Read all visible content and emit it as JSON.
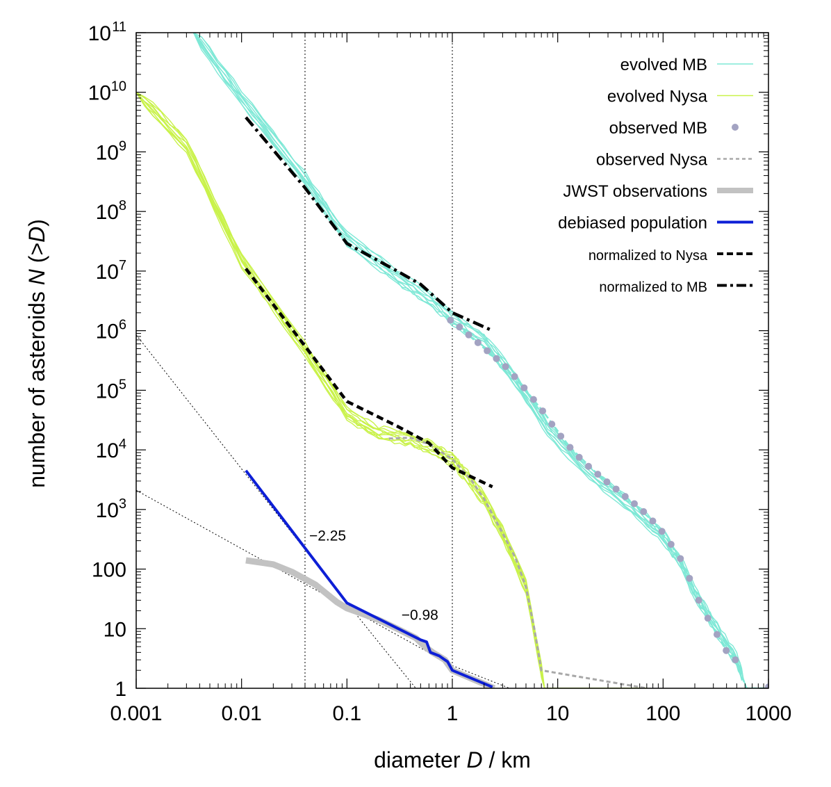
{
  "chart_data": {
    "type": "line",
    "xscale": "log",
    "yscale": "log",
    "xlabel": {
      "prefix": "diameter ",
      "italic": "D",
      "suffix": " / km"
    },
    "ylabel": {
      "prefix": "number of asteroids ",
      "italic": "N",
      "suffix": " (>",
      "italic2": "D",
      "end": ")"
    },
    "xlim": [
      0.001,
      1000
    ],
    "ylim": [
      1,
      100000000000.0
    ],
    "xticks": [
      {
        "value": 0.001,
        "label": "0.001"
      },
      {
        "value": 0.01,
        "label": "0.01"
      },
      {
        "value": 0.1,
        "label": "0.1"
      },
      {
        "value": 1,
        "label": "1"
      },
      {
        "value": 10,
        "label": "10"
      },
      {
        "value": 100,
        "label": "100"
      },
      {
        "value": 1000,
        "label": "1000"
      }
    ],
    "yticks": [
      {
        "value": 1,
        "label": "1"
      },
      {
        "value": 10,
        "label": "10"
      },
      {
        "value": 100,
        "label": "100"
      },
      {
        "value": 1000,
        "label": "10",
        "exp": "3"
      },
      {
        "value": 10000,
        "label": "10",
        "exp": "4"
      },
      {
        "value": 100000,
        "label": "10",
        "exp": "5"
      },
      {
        "value": 1000000,
        "label": "10",
        "exp": "6"
      },
      {
        "value": 10000000,
        "label": "10",
        "exp": "7"
      },
      {
        "value": 100000000,
        "label": "10",
        "exp": "8"
      },
      {
        "value": 1000000000,
        "label": "10",
        "exp": "9"
      },
      {
        "value": 10000000000,
        "label": "10",
        "exp": "10"
      },
      {
        "value": 100000000000,
        "label": "10",
        "exp": "11"
      }
    ],
    "vlines": [
      0.04,
      1
    ],
    "colors": {
      "evolved_mb": "#7ee8d6",
      "evolved_nysa": "#c9f24a",
      "observed_mb": "#a3a3c2",
      "observed_nysa": "#a8a8a8",
      "jwst": "#c2c2c2",
      "debiased": "#0d1fd6",
      "black": "#000000"
    },
    "legend": [
      {
        "label": "evolved MB",
        "style": "thin",
        "color": "#7ee8d6"
      },
      {
        "label": "evolved Nysa",
        "style": "thin",
        "color": "#c9f24a"
      },
      {
        "label": "observed MB",
        "style": "dot",
        "color": "#a3a3c2"
      },
      {
        "label": "observed Nysa",
        "style": "dashgray",
        "color": "#a8a8a8"
      },
      {
        "label": "JWST observations",
        "style": "thick",
        "color": "#c2c2c2"
      },
      {
        "label": "debiased population",
        "style": "blue",
        "color": "#0d1fd6"
      },
      {
        "label": "normalized to Nysa",
        "style": "dash",
        "color": "#000000",
        "small": true
      },
      {
        "label": "normalized to MB",
        "style": "dashdot",
        "color": "#000000",
        "small": true
      }
    ],
    "annotations": [
      {
        "text": "−2.25",
        "x": 0.04,
        "y": 300
      },
      {
        "text": "−0.98",
        "x": 0.3,
        "y": 14
      }
    ],
    "series": [
      {
        "name": "evolved MB",
        "kind": "ensemble",
        "count": 9,
        "spread": 0.12,
        "points": [
          [
            0.0035,
            100000000000.0
          ],
          [
            0.01,
            8000000000.0
          ],
          [
            0.04,
            350000000.0
          ],
          [
            0.1,
            35000000.0
          ],
          [
            0.3,
            8000000.0
          ],
          [
            0.6,
            3500000.0
          ],
          [
            1,
            1600000.0
          ],
          [
            2,
            700000.0
          ],
          [
            4,
            150000.0
          ],
          [
            8,
            23000.0
          ],
          [
            20,
            4000.0
          ],
          [
            50,
            1100.0
          ],
          [
            100,
            350
          ],
          [
            150,
            120
          ],
          [
            200,
            40
          ],
          [
            300,
            12
          ],
          [
            500,
            3
          ],
          [
            620,
            1
          ],
          [
            1000,
            1
          ]
        ]
      },
      {
        "name": "evolved Nysa",
        "kind": "ensemble",
        "count": 9,
        "spread": 0.12,
        "points": [
          [
            0.001,
            10000000000.0
          ],
          [
            0.003,
            1300000000.0
          ],
          [
            0.01,
            15000000.0
          ],
          [
            0.04,
            500000.0
          ],
          [
            0.1,
            40000.0
          ],
          [
            0.2,
            19000.0
          ],
          [
            0.4,
            15000.0
          ],
          [
            0.7,
            10000.0
          ],
          [
            1,
            7000.0
          ],
          [
            1.3,
            4000.0
          ],
          [
            2,
            1500.0
          ],
          [
            3,
            400.0
          ],
          [
            5,
            50
          ],
          [
            7.5,
            1
          ],
          [
            70,
            1
          ]
        ]
      },
      {
        "name": "observed MB",
        "kind": "dots",
        "points": [
          [
            0.96,
            1500000.0
          ],
          [
            1.17,
            1150000.0
          ],
          [
            1.43,
            850000.0
          ],
          [
            1.75,
            630000.0
          ],
          [
            2.14,
            460000.0
          ],
          [
            2.62,
            340000.0
          ],
          [
            3.2,
            250000.0
          ],
          [
            3.9,
            170000.0
          ],
          [
            4.8,
            110000.0
          ],
          [
            5.9,
            70000.0
          ],
          [
            7.2,
            45000.0
          ],
          [
            8.8,
            27000.0
          ],
          [
            10.7,
            17000.0
          ],
          [
            13.1,
            11000.0
          ],
          [
            16,
            7500.0
          ],
          [
            19.6,
            5300.0
          ],
          [
            24,
            3900.0
          ],
          [
            29.3,
            2900.0
          ],
          [
            35.8,
            2200.0
          ],
          [
            43.7,
            1650.0
          ],
          [
            53.4,
            1250.0
          ],
          [
            65.3,
            920
          ],
          [
            79.8,
            640
          ],
          [
            97.5,
            430
          ],
          [
            119,
            260
          ],
          [
            146,
            150
          ],
          [
            178,
            70
          ],
          [
            218,
            30
          ],
          [
            266,
            15
          ],
          [
            325,
            8
          ],
          [
            397,
            4.3
          ],
          [
            485,
            3
          ],
          [
            1000,
            1.05
          ]
        ]
      },
      {
        "name": "observed MB fit",
        "kind": "dashedcyan",
        "points": [
          [
            0.96,
            1500000.0
          ],
          [
            2.14,
            460000.0
          ],
          [
            3.9,
            170000.0
          ],
          [
            7.2,
            45000.0
          ],
          [
            13.1,
            11000.0
          ],
          [
            24,
            3900.0
          ],
          [
            43.7,
            1650.0
          ],
          [
            79.8,
            640
          ],
          [
            119,
            260
          ],
          [
            178,
            70
          ],
          [
            266,
            15
          ],
          [
            397,
            4.3
          ],
          [
            485,
            3
          ],
          [
            620,
            1
          ],
          [
            1000,
            1
          ]
        ]
      },
      {
        "name": "observed Nysa",
        "kind": "dashgray",
        "points": [
          [
            0.25,
            15500.0
          ],
          [
            0.4,
            16000.0
          ],
          [
            0.6,
            12500.0
          ],
          [
            1,
            7000.0
          ],
          [
            1.5,
            3200.0
          ],
          [
            2,
            1500.0
          ],
          [
            3,
            400.0
          ],
          [
            4,
            150.0
          ],
          [
            5,
            50
          ],
          [
            6,
            10
          ],
          [
            7,
            2
          ],
          [
            70,
            1
          ]
        ]
      },
      {
        "name": "JWST observations",
        "kind": "thick",
        "points": [
          [
            0.011,
            140
          ],
          [
            0.02,
            120
          ],
          [
            0.03,
            90
          ],
          [
            0.05,
            55
          ],
          [
            0.08,
            28
          ],
          [
            0.1,
            22
          ],
          [
            0.15,
            17
          ],
          [
            0.2,
            14
          ],
          [
            0.3,
            10
          ],
          [
            0.45,
            7
          ],
          [
            0.55,
            5
          ],
          [
            0.65,
            4
          ],
          [
            0.85,
            3
          ],
          [
            1,
            2
          ],
          [
            2.5,
            1
          ]
        ]
      },
      {
        "name": "debiased population",
        "kind": "blue",
        "points": [
          [
            0.011,
            4500.0
          ],
          [
            0.1,
            27
          ],
          [
            0.5,
            6.5
          ],
          [
            0.57,
            6
          ],
          [
            0.62,
            4
          ],
          [
            0.75,
            3.5
          ],
          [
            0.9,
            2.8
          ],
          [
            1,
            2
          ],
          [
            2.4,
            1.05
          ]
        ]
      },
      {
        "name": "normalized to Nysa",
        "kind": "dash",
        "points": [
          [
            0.011,
            11000000.0
          ],
          [
            0.04,
            550000.0
          ],
          [
            0.1,
            65000.0
          ],
          [
            0.3,
            25000.0
          ],
          [
            0.6,
            13000.0
          ],
          [
            1,
            5000.0
          ],
          [
            2.4,
            2400.0
          ]
        ]
      },
      {
        "name": "normalized to MB",
        "kind": "dashdot",
        "points": [
          [
            0.011,
            3800000000.0
          ],
          [
            0.04,
            250000000.0
          ],
          [
            0.1,
            29000000.0
          ],
          [
            0.3,
            10000000.0
          ],
          [
            0.5,
            6000000.0
          ],
          [
            0.6,
            4500000.0
          ],
          [
            1,
            2000000.0
          ],
          [
            2.4,
            1000000.0
          ]
        ]
      },
      {
        "name": "power law fit -2.25",
        "kind": "guide",
        "points": [
          [
            0.001,
            850000.0
          ],
          [
            0.01,
            4800.0
          ],
          [
            0.1,
            27
          ],
          [
            0.45,
            1
          ]
        ]
      },
      {
        "name": "power law fit -0.98",
        "kind": "guide",
        "points": [
          [
            0.001,
            2100
          ],
          [
            0.01,
            220
          ],
          [
            0.1,
            23
          ],
          [
            1,
            2.4
          ],
          [
            3.5,
            1
          ]
        ]
      }
    ]
  }
}
